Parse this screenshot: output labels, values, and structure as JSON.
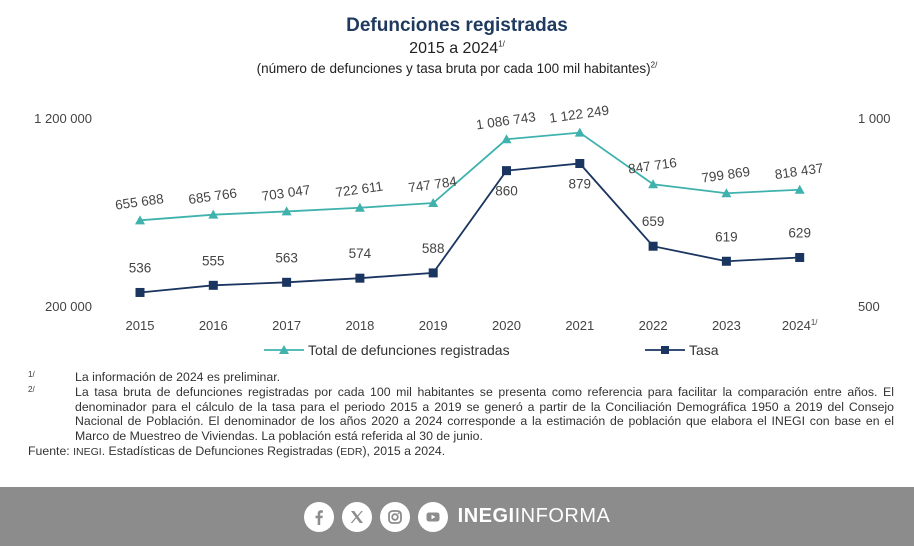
{
  "title": "Defunciones registradas",
  "subtitle": "2015 a 2024",
  "subtitle_sup": "1/",
  "subtitle2": "(número de defunciones y tasa bruta por cada 100 mil habitantes)",
  "subtitle2_sup": "2/",
  "chart_data": {
    "type": "line",
    "categories": [
      "2015",
      "2016",
      "2017",
      "2018",
      "2019",
      "2020",
      "2021",
      "2022",
      "2023",
      "2024"
    ],
    "last_category_sup": "1/",
    "series": [
      {
        "name": "Total de defunciones registradas",
        "axis": "left",
        "color": "#3fb2ad",
        "marker": "triangle",
        "values": [
          655688,
          685766,
          703047,
          722611,
          747784,
          1086743,
          1122249,
          847716,
          799869,
          818437
        ],
        "labels": [
          "655 688",
          "685 766",
          "703 047",
          "722 611",
          "747 784",
          "1 086 743",
          "1 122 249",
          "847 716",
          "799 869",
          "818 437"
        ]
      },
      {
        "name": "Tasa",
        "axis": "right",
        "color": "#1a3560",
        "marker": "square",
        "values": [
          536,
          555,
          563,
          574,
          588,
          860,
          879,
          659,
          619,
          629
        ],
        "labels": [
          "536",
          "555",
          "563",
          "574",
          "588",
          "860",
          "879",
          "659",
          "619",
          "629"
        ]
      }
    ],
    "y_left": {
      "range": [
        200000,
        1200000
      ],
      "tick_labels": [
        "200 000",
        "1 200 000"
      ]
    },
    "y_right": {
      "range": [
        500,
        1000
      ],
      "tick_labels": [
        "500",
        "1 000"
      ]
    },
    "grid": false,
    "legend_position": "bottom"
  },
  "notes": [
    {
      "mark": "1/",
      "text": "La información de 2024 es preliminar."
    },
    {
      "mark": "2/",
      "text": "La tasa bruta de defunciones registradas por cada 100 mil habitantes se presenta como referencia para facilitar la comparación entre años. El denominador para el cálculo de la tasa para el periodo 2015 a 2019 se generó a partir de la Conciliación Demográfica 1950 a 2019 del Consejo Nacional de Población. El denominador de los años 2020 a 2024 corresponde a la estimación de población que elabora el INEGI con base en el Marco de Muestreo de Viviendas. La población está referida al 30 de junio."
    }
  ],
  "source": {
    "label": "Fuente:",
    "org": "INEGI",
    "text": ". Estadísticas de Defunciones Registradas (",
    "abbr": "EDR",
    "text2": "), 2015 a 2024."
  },
  "footer": {
    "icons": [
      "facebook-icon",
      "x-icon",
      "instagram-icon",
      "youtube-icon"
    ],
    "brand_bold": "INEGI",
    "brand_light": "INFORMA"
  }
}
